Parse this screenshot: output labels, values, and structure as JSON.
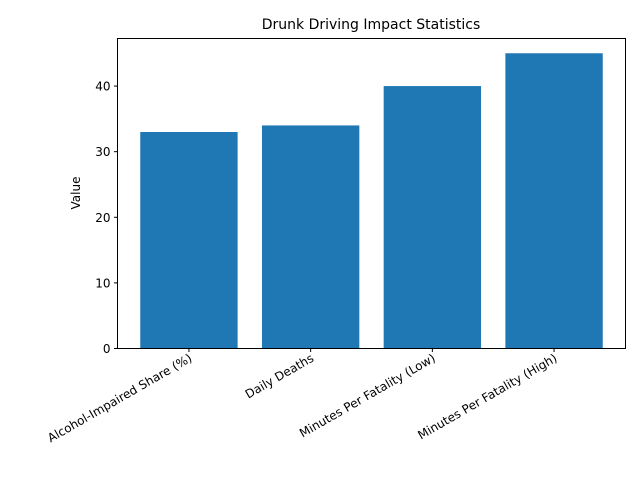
{
  "chart_data": {
    "type": "bar",
    "title": "Drunk Driving Impact Statistics",
    "xlabel": "",
    "ylabel": "Value",
    "categories": [
      "Alcohol-Impaired Share (%)",
      "Daily Deaths",
      "Minutes Per Fatality (Low)",
      "Minutes Per Fatality (High)"
    ],
    "values": [
      33,
      34,
      40,
      45
    ],
    "ylim": [
      0,
      47.25
    ],
    "yticks": [
      0,
      10,
      20,
      30,
      40
    ],
    "ytick_labels": [
      "0",
      "10",
      "20",
      "30",
      "40"
    ],
    "grid": false,
    "bar_color": "#1f77b4"
  }
}
